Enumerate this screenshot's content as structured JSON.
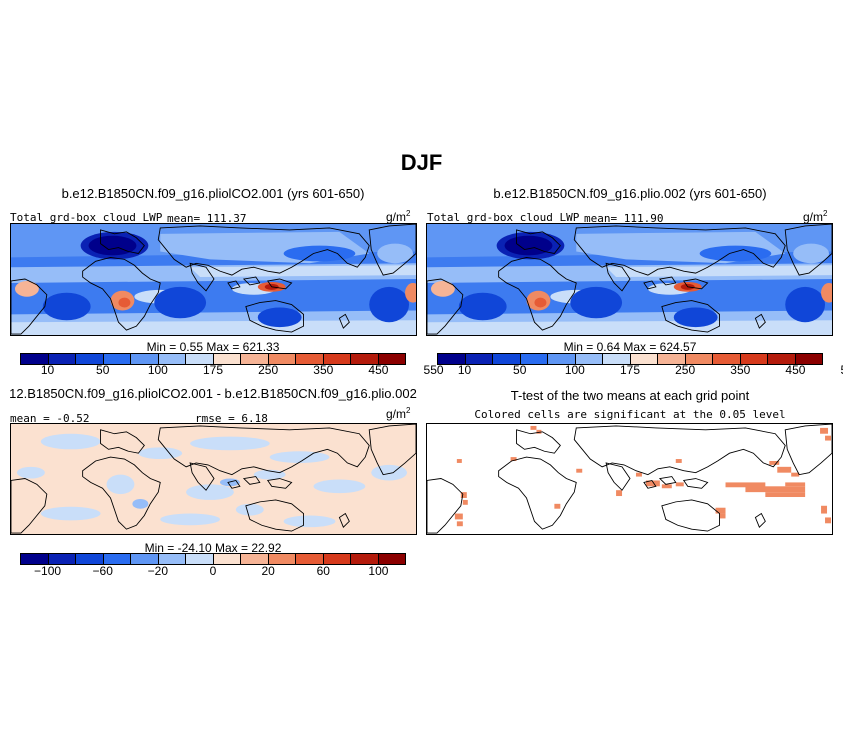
{
  "title": "DJF",
  "panels": {
    "p1": {
      "title": "b.e12.B1850CN.f09_g16.pliolCO2.001 (yrs 601-650)",
      "label": "Total grd-box cloud LWP",
      "mean_text": "mean= 111.37",
      "units": "g/m",
      "units_exp": "2",
      "minmax": "Min =    0.55 Max = 621.33"
    },
    "p2": {
      "title": "b.e12.B1850CN.f09_g16.plio.002 (yrs 601-650)",
      "label": "Total grd-box cloud LWP",
      "mean_text": "mean= 111.90",
      "units": "g/m",
      "units_exp": "2",
      "minmax": "Min =    0.64 Max = 624.57"
    },
    "p3": {
      "title": "12.B1850CN.f09_g16.pliolCO2.001 - b.e12.B1850CN.f09_g16.plio.002",
      "mean_text": "mean = -0.52",
      "rmse_text": "rmse =   6.18",
      "units": "g/m",
      "units_exp": "2",
      "minmax": "Min = -24.10 Max =  22.92"
    },
    "p4": {
      "title": "T-test of the two means at each grid point",
      "subtitle": "Colored cells are significant at the 0.05 level"
    }
  },
  "colorbar_abs": {
    "colors": [
      "#00008b",
      "#0a22b4",
      "#1046d8",
      "#2a6cf0",
      "#5f96f4",
      "#96bdf8",
      "#c9def9",
      "#fbe1d0",
      "#f6b496",
      "#f08a62",
      "#e65b35",
      "#d63a1c",
      "#b41b0c",
      "#8b0000"
    ],
    "ticks": [
      "10",
      "50",
      "100",
      "175",
      "250",
      "350",
      "450",
      "550"
    ]
  },
  "colorbar_diff": {
    "colors": [
      "#00008b",
      "#0a22b4",
      "#1046d8",
      "#2a6cf0",
      "#5f96f4",
      "#96bdf8",
      "#c9def9",
      "#fbe1d0",
      "#f6b496",
      "#f08a62",
      "#e65b35",
      "#d63a1c",
      "#b41b0c",
      "#8b0000"
    ],
    "ticks": [
      "−100",
      "−60",
      "−20",
      "0",
      "20",
      "60",
      "100"
    ]
  },
  "colors": {
    "ocean_high": "#c9def9",
    "land_low": "#1a45d0",
    "significant": "#f08a62",
    "diff_pos": "#fbe1d0",
    "diff_neg": "#c9def9"
  }
}
